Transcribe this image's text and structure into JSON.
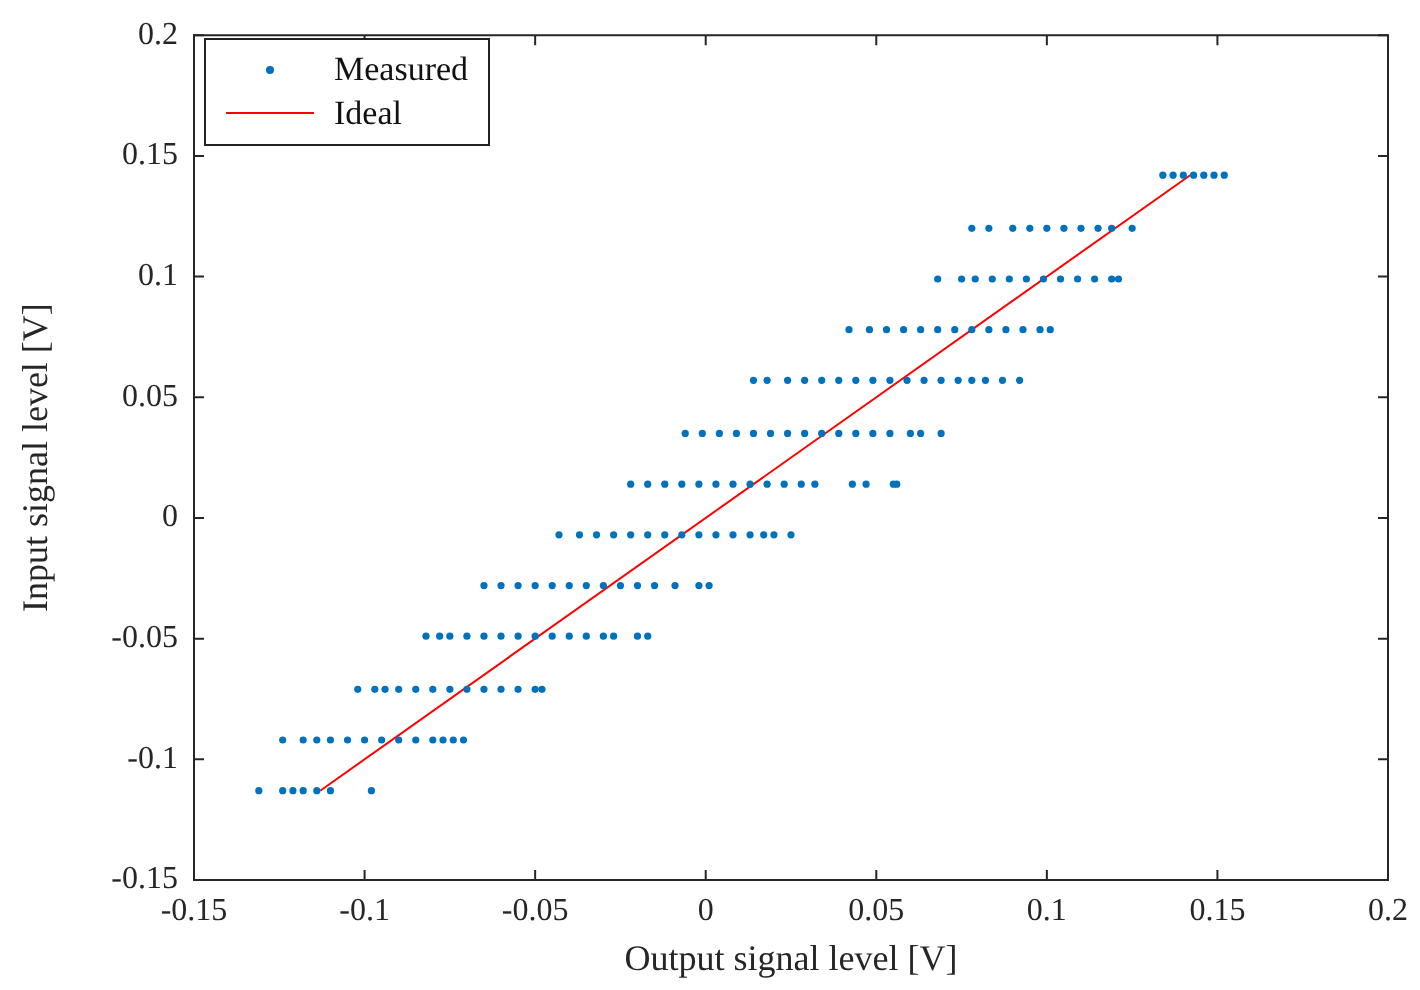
{
  "chart_data": {
    "type": "scatter",
    "xlabel": "Output signal level [V]",
    "ylabel": "Input signal level [V]",
    "xlim": [
      -0.15,
      0.2
    ],
    "xticks": [
      -0.15,
      -0.1,
      -0.05,
      0,
      0.05,
      0.1,
      0.15,
      0.2
    ],
    "ylim": [
      -0.15,
      0.2
    ],
    "yticks": [
      -0.15,
      -0.1,
      -0.05,
      0,
      0.05,
      0.1,
      0.15,
      0.2
    ],
    "grid": false,
    "legend": "top left",
    "marker": "circle",
    "series": [
      {
        "name": "Measured",
        "color": "#0072bd",
        "x": [
          -0.131,
          -0.124,
          -0.121,
          -0.118,
          -0.114,
          -0.11,
          -0.098,
          -0.124,
          -0.118,
          -0.114,
          -0.11,
          -0.105,
          -0.1,
          -0.095,
          -0.09,
          -0.085,
          -0.08,
          -0.077,
          -0.074,
          -0.071,
          -0.102,
          -0.097,
          -0.094,
          -0.09,
          -0.085,
          -0.08,
          -0.075,
          -0.07,
          -0.065,
          -0.06,
          -0.055,
          -0.05,
          -0.048,
          -0.082,
          -0.078,
          -0.075,
          -0.07,
          -0.065,
          -0.06,
          -0.055,
          -0.05,
          -0.045,
          -0.04,
          -0.035,
          -0.03,
          -0.027,
          -0.02,
          -0.017,
          -0.065,
          -0.06,
          -0.055,
          -0.05,
          -0.045,
          -0.04,
          -0.035,
          -0.03,
          -0.025,
          -0.02,
          -0.015,
          -0.009,
          -0.002,
          0.001,
          -0.043,
          -0.037,
          -0.032,
          -0.027,
          -0.022,
          -0.017,
          -0.012,
          -0.007,
          -0.002,
          0.003,
          0.008,
          0.013,
          0.017,
          0.02,
          0.025,
          -0.022,
          -0.017,
          -0.012,
          -0.007,
          -0.002,
          0.003,
          0.008,
          0.013,
          0.018,
          0.023,
          0.028,
          0.032,
          0.043,
          0.047,
          0.055,
          0.056,
          -0.006,
          -0.001,
          0.004,
          0.009,
          0.014,
          0.019,
          0.024,
          0.029,
          0.034,
          0.039,
          0.044,
          0.049,
          0.054,
          0.06,
          0.063,
          0.069,
          0.014,
          0.018,
          0.024,
          0.029,
          0.034,
          0.039,
          0.044,
          0.049,
          0.054,
          0.059,
          0.064,
          0.069,
          0.074,
          0.078,
          0.082,
          0.087,
          0.092,
          0.042,
          0.048,
          0.053,
          0.058,
          0.063,
          0.068,
          0.073,
          0.078,
          0.083,
          0.088,
          0.093,
          0.098,
          0.101,
          0.068,
          0.075,
          0.079,
          0.084,
          0.089,
          0.094,
          0.099,
          0.104,
          0.109,
          0.114,
          0.119,
          0.121,
          0.078,
          0.083,
          0.09,
          0.095,
          0.1,
          0.105,
          0.11,
          0.115,
          0.119,
          0.125,
          0.134,
          0.137,
          0.14,
          0.143,
          0.146,
          0.149,
          0.152
        ],
        "values": [
          -0.113,
          -0.113,
          -0.113,
          -0.113,
          -0.113,
          -0.113,
          -0.113,
          -0.092,
          -0.092,
          -0.092,
          -0.092,
          -0.092,
          -0.092,
          -0.092,
          -0.092,
          -0.092,
          -0.092,
          -0.092,
          -0.092,
          -0.092,
          -0.071,
          -0.071,
          -0.071,
          -0.071,
          -0.071,
          -0.071,
          -0.071,
          -0.071,
          -0.071,
          -0.071,
          -0.071,
          -0.071,
          -0.071,
          -0.049,
          -0.049,
          -0.049,
          -0.049,
          -0.049,
          -0.049,
          -0.049,
          -0.049,
          -0.049,
          -0.049,
          -0.049,
          -0.049,
          -0.049,
          -0.049,
          -0.049,
          -0.028,
          -0.028,
          -0.028,
          -0.028,
          -0.028,
          -0.028,
          -0.028,
          -0.028,
          -0.028,
          -0.028,
          -0.028,
          -0.028,
          -0.028,
          -0.028,
          -0.007,
          -0.007,
          -0.007,
          -0.007,
          -0.007,
          -0.007,
          -0.007,
          -0.007,
          -0.007,
          -0.007,
          -0.007,
          -0.007,
          -0.007,
          -0.007,
          -0.007,
          0.014,
          0.014,
          0.014,
          0.014,
          0.014,
          0.014,
          0.014,
          0.014,
          0.014,
          0.014,
          0.014,
          0.014,
          0.014,
          0.014,
          0.014,
          0.014,
          0.035,
          0.035,
          0.035,
          0.035,
          0.035,
          0.035,
          0.035,
          0.035,
          0.035,
          0.035,
          0.035,
          0.035,
          0.035,
          0.035,
          0.035,
          0.035,
          0.057,
          0.057,
          0.057,
          0.057,
          0.057,
          0.057,
          0.057,
          0.057,
          0.057,
          0.057,
          0.057,
          0.057,
          0.057,
          0.057,
          0.057,
          0.057,
          0.057,
          0.078,
          0.078,
          0.078,
          0.078,
          0.078,
          0.078,
          0.078,
          0.078,
          0.078,
          0.078,
          0.078,
          0.078,
          0.078,
          0.099,
          0.099,
          0.099,
          0.099,
          0.099,
          0.099,
          0.099,
          0.099,
          0.099,
          0.099,
          0.099,
          0.099,
          0.12,
          0.12,
          0.12,
          0.12,
          0.12,
          0.12,
          0.12,
          0.12,
          0.12,
          0.12,
          0.142,
          0.142,
          0.142,
          0.142,
          0.142,
          0.142,
          0.142
        ]
      },
      {
        "name": "Ideal",
        "type": "line",
        "color": "#ff0000",
        "marker": "none",
        "line_style": "solid",
        "x": [
          -0.113,
          0.142
        ],
        "values": [
          -0.113,
          0.142
        ]
      }
    ]
  }
}
